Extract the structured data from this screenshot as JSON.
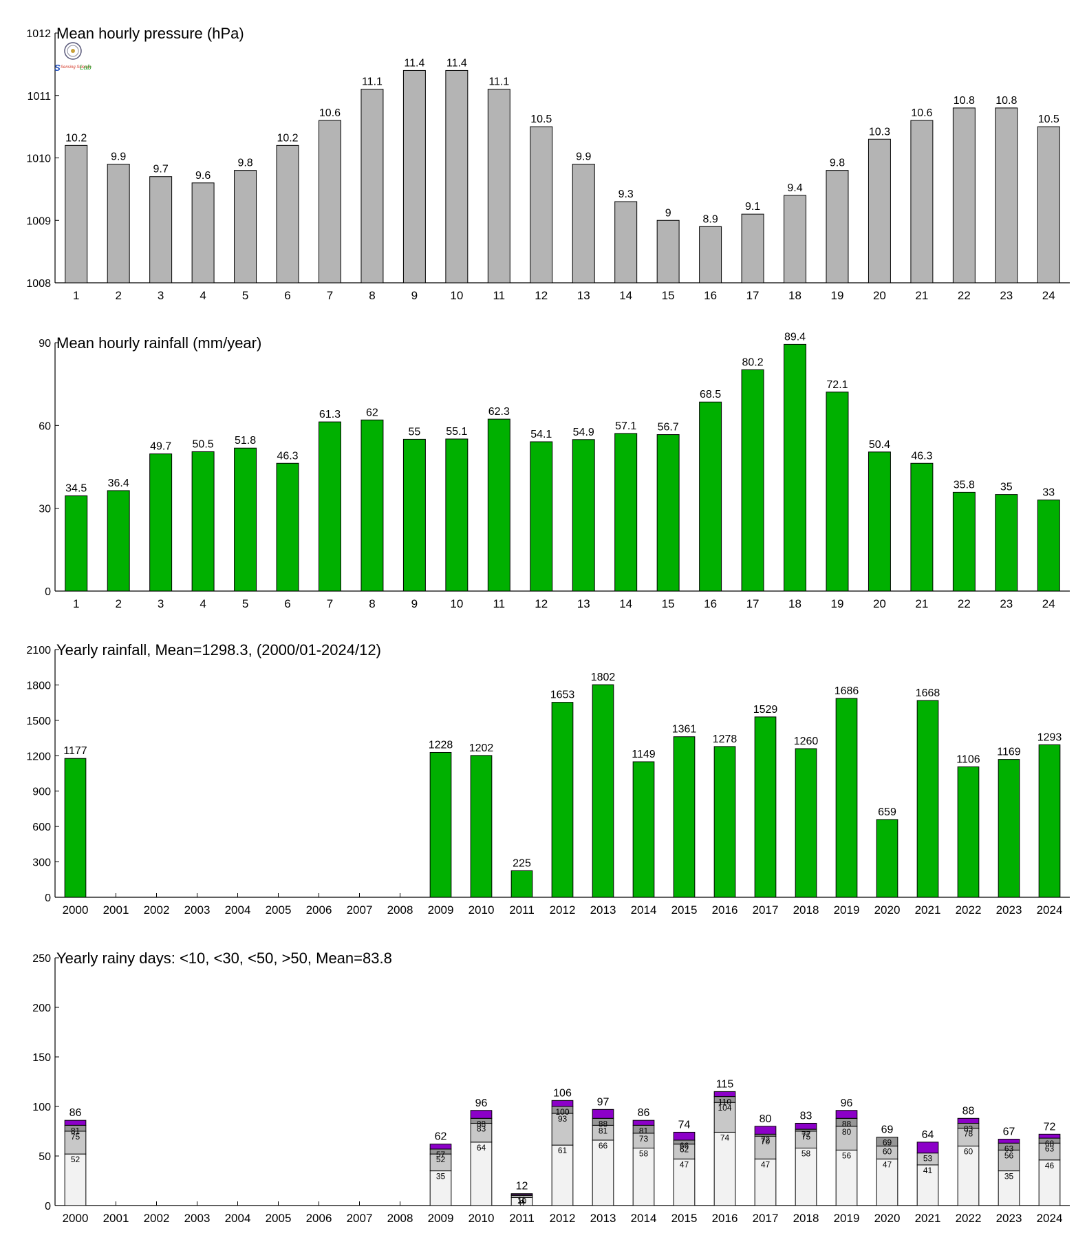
{
  "colors": {
    "gray_bar": "#b4b4b4",
    "green_bar": "#00b000",
    "purple": "#8c00c8",
    "dark_gray": "#969696",
    "light_gray": "#c8c8c8",
    "very_light": "#f2f2f2"
  },
  "logo": {
    "icon": "seal-logo-icon",
    "text_s": "S",
    "text_mid": "Sensing Science",
    "text_lab": "Lab"
  },
  "chart_data": [
    {
      "type": "bar",
      "title": "Mean hourly pressure (hPa)",
      "categories": [
        "1",
        "2",
        "3",
        "4",
        "5",
        "6",
        "7",
        "8",
        "9",
        "10",
        "11",
        "12",
        "13",
        "14",
        "15",
        "16",
        "17",
        "18",
        "19",
        "20",
        "21",
        "22",
        "23",
        "24"
      ],
      "values": [
        1010.2,
        1009.9,
        1009.7,
        1009.6,
        1009.8,
        1010.2,
        1010.6,
        1011.1,
        1011.4,
        1011.4,
        1011.1,
        1010.5,
        1009.9,
        1009.3,
        1009.0,
        1008.9,
        1009.1,
        1009.4,
        1009.8,
        1010.3,
        1010.6,
        1010.8,
        1010.8,
        1010.5
      ],
      "labels": [
        "10.2",
        "9.9",
        "9.7",
        "9.6",
        "9.8",
        "10.2",
        "10.6",
        "11.1",
        "11.4",
        "11.4",
        "11.1",
        "10.5",
        "9.9",
        "9.3",
        "9",
        "8.9",
        "9.1",
        "9.4",
        "9.8",
        "10.3",
        "10.6",
        "10.8",
        "10.8",
        "10.5"
      ],
      "ylim": [
        1008,
        1012
      ],
      "yticks": [
        1008,
        1009,
        1010,
        1011,
        1012
      ],
      "color": "#b4b4b4"
    },
    {
      "type": "bar",
      "title": "Mean hourly rainfall (mm/year)",
      "categories": [
        "1",
        "2",
        "3",
        "4",
        "5",
        "6",
        "7",
        "8",
        "9",
        "10",
        "11",
        "12",
        "13",
        "14",
        "15",
        "16",
        "17",
        "18",
        "19",
        "20",
        "21",
        "22",
        "23",
        "24"
      ],
      "values": [
        34.5,
        36.4,
        49.7,
        50.5,
        51.8,
        46.3,
        61.3,
        62,
        55,
        55.1,
        62.3,
        54.1,
        54.9,
        57.1,
        56.7,
        68.5,
        80.2,
        89.4,
        72.1,
        50.4,
        46.3,
        35.8,
        35,
        33
      ],
      "labels": [
        "34.5",
        "36.4",
        "49.7",
        "50.5",
        "51.8",
        "46.3",
        "61.3",
        "62",
        "55",
        "55.1",
        "62.3",
        "54.1",
        "54.9",
        "57.1",
        "56.7",
        "68.5",
        "80.2",
        "89.4",
        "72.1",
        "50.4",
        "46.3",
        "35.8",
        "35",
        "33"
      ],
      "ylim": [
        0,
        90
      ],
      "yticks": [
        0,
        30,
        60,
        90
      ],
      "color": "#00b000"
    },
    {
      "type": "bar",
      "title": "Yearly rainfall, Mean=1298.3, (2000/01-2024/12)",
      "categories": [
        "2000",
        "2001",
        "2002",
        "2003",
        "2004",
        "2005",
        "2006",
        "2007",
        "2008",
        "2009",
        "2010",
        "2011",
        "2012",
        "2013",
        "2014",
        "2015",
        "2016",
        "2017",
        "2018",
        "2019",
        "2020",
        "2021",
        "2022",
        "2023",
        "2024"
      ],
      "values": [
        1177,
        null,
        null,
        null,
        null,
        null,
        null,
        null,
        null,
        1228,
        1202,
        225,
        1653,
        1802,
        1149,
        1361,
        1278,
        1529,
        1260,
        1686,
        659,
        1668,
        1106,
        1169,
        1293
      ],
      "labels": [
        "1177",
        "",
        "",
        "",
        "",
        "",
        "",
        "",
        "",
        "1228",
        "1202",
        "225",
        "1653",
        "1802",
        "1149",
        "1361",
        "1278",
        "1529",
        "1260",
        "1686",
        "659",
        "1668",
        "1106",
        "1169",
        "1293"
      ],
      "ylim": [
        0,
        2100
      ],
      "yticks": [
        0,
        300,
        600,
        900,
        1200,
        1500,
        1800,
        2100
      ],
      "color": "#00b000"
    },
    {
      "type": "bar",
      "title": "Yearly rainy days: <10, <30, <50, >50, Mean=83.8",
      "categories": [
        "2000",
        "2001",
        "2002",
        "2003",
        "2004",
        "2005",
        "2006",
        "2007",
        "2008",
        "2009",
        "2010",
        "2011",
        "2012",
        "2013",
        "2014",
        "2015",
        "2016",
        "2017",
        "2018",
        "2019",
        "2020",
        "2021",
        "2022",
        "2023",
        "2024"
      ],
      "stack": [
        {
          "c10": 52,
          "c30": 75,
          "c50": 81,
          "total": 86
        },
        null,
        null,
        null,
        null,
        null,
        null,
        null,
        null,
        {
          "c10": 35,
          "c30": 52,
          "c50": 57,
          "total": 62
        },
        {
          "c10": 64,
          "c30": 83,
          "c50": 88,
          "total": 96
        },
        {
          "c10": 8,
          "c30": 10,
          "c50": 11,
          "total": 12
        },
        {
          "c10": 61,
          "c30": 93,
          "c50": 100,
          "total": 106
        },
        {
          "c10": 66,
          "c30": 81,
          "c50": 88,
          "total": 97
        },
        {
          "c10": 58,
          "c30": 73,
          "c50": 81,
          "total": 86
        },
        {
          "c10": 47,
          "c30": 62,
          "c50": 66,
          "total": 74
        },
        {
          "c10": 74,
          "c30": 104,
          "c50": 110,
          "total": 115
        },
        {
          "c10": 47,
          "c30": 70,
          "c50": 72,
          "total": 80
        },
        {
          "c10": 58,
          "c30": 75,
          "c50": 77,
          "total": 83
        },
        {
          "c10": 56,
          "c30": 80,
          "c50": 88,
          "total": 96
        },
        {
          "c10": 47,
          "c30": 60,
          "c50": 69,
          "total": 69
        },
        {
          "c10": 41,
          "c30": 53,
          "c50": 53,
          "total": 64
        },
        {
          "c10": 60,
          "c30": 78,
          "c50": 83,
          "total": 88
        },
        {
          "c10": 35,
          "c30": 56,
          "c50": 63,
          "total": 67
        },
        {
          "c10": 46,
          "c30": 63,
          "c50": 68,
          "total": 72
        }
      ],
      "ylim": [
        0,
        250
      ],
      "yticks": [
        0,
        50,
        100,
        150,
        200,
        250
      ],
      "segment_colors": [
        "#f2f2f2",
        "#c8c8c8",
        "#969696",
        "#8c00c8"
      ]
    }
  ]
}
